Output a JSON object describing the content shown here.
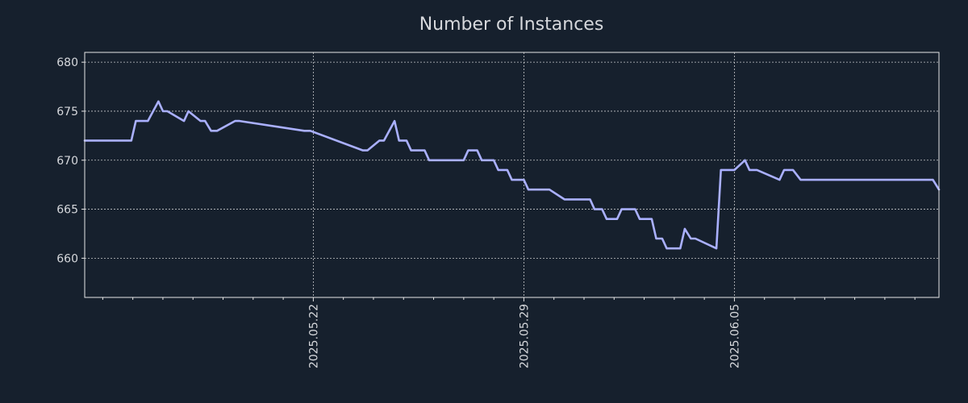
{
  "chart_data": {
    "type": "line",
    "title": "Number of Instances",
    "xlabel": "",
    "ylabel": "",
    "ylim": [
      656,
      681
    ],
    "yticks": [
      660,
      665,
      670,
      675,
      680
    ],
    "xlim_days": [
      -7.6,
      20.8
    ],
    "xticks": [
      {
        "label": "2025.05.22",
        "day": 0
      },
      {
        "label": "2025.05.29",
        "day": 7
      },
      {
        "label": "2025.06.05",
        "day": 14
      }
    ],
    "minor_xtick_days": [
      -7,
      -6,
      -5,
      -4,
      -3,
      -2,
      -1,
      1,
      2,
      3,
      4,
      5,
      6,
      8,
      9,
      10,
      11,
      12,
      13,
      15,
      16,
      17,
      18,
      19,
      20
    ],
    "grid": true,
    "colors": {
      "line": "#aab0ff",
      "background": "#16202d",
      "text": "#d6d8dc",
      "grid": "#e6e6e6"
    },
    "series": [
      {
        "name": "instances",
        "x_day": [
          -7.6,
          -6.05,
          -5.9,
          -5.5,
          -5.15,
          -5.0,
          -4.85,
          -4.3,
          -4.15,
          -3.75,
          -3.6,
          -3.4,
          -3.2,
          -2.6,
          -2.45,
          -0.3,
          -0.1,
          1.65,
          1.8,
          2.2,
          2.35,
          2.7,
          2.85,
          3.1,
          3.25,
          3.7,
          3.85,
          5.0,
          5.15,
          5.45,
          5.6,
          6.0,
          6.15,
          6.45,
          6.6,
          7.0,
          7.15,
          7.85,
          8.35,
          9.2,
          9.35,
          9.6,
          9.75,
          10.1,
          10.25,
          10.7,
          10.85,
          11.25,
          11.4,
          11.6,
          11.75,
          12.2,
          12.35,
          12.55,
          12.7,
          13.4,
          13.55,
          14.0,
          14.35,
          14.5,
          14.75,
          15.5,
          15.65,
          15.95,
          16.2,
          16.35,
          16.6,
          17.2,
          17.35,
          18.05,
          18.2,
          19.25,
          19.4,
          20.6,
          20.8
        ],
        "values": [
          672,
          672,
          674,
          674,
          676,
          675,
          675,
          674,
          675,
          674,
          674,
          673,
          673,
          674,
          674,
          673,
          673,
          671,
          671,
          672,
          672,
          674,
          672,
          672,
          671,
          671,
          670,
          670,
          671,
          671,
          670,
          670,
          669,
          669,
          668,
          668,
          667,
          667,
          666,
          666,
          665,
          665,
          664,
          664,
          665,
          665,
          664,
          664,
          662,
          662,
          661,
          661,
          663,
          662,
          662,
          661,
          669,
          669,
          670,
          669,
          669,
          668,
          669,
          669,
          668,
          668,
          668,
          668,
          668,
          668,
          668,
          668,
          668,
          668,
          667
        ]
      }
    ]
  }
}
